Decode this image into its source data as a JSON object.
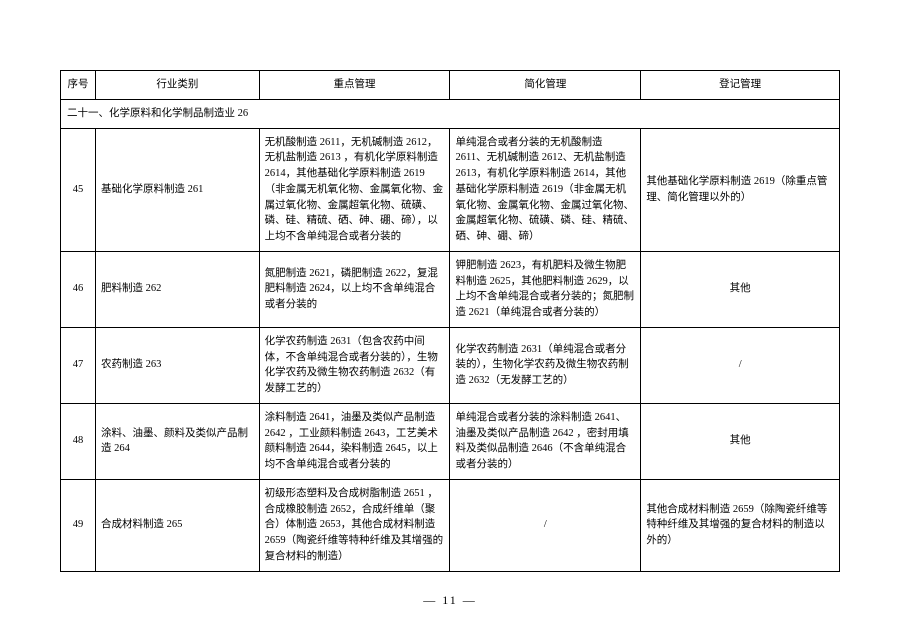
{
  "headers": {
    "seq": "序号",
    "industry": "行业类别",
    "key": "重点管理",
    "simple": "简化管理",
    "reg": "登记管理"
  },
  "section": "二十一、化学原料和化学制品制造业 26",
  "rows": [
    {
      "seq": "45",
      "industry": "基础化学原料制造 261",
      "key": "无机酸制造 2611，无机碱制造 2612，无机盐制造 2613 ，有机化学原料制造 2614，其他基础化学原料制造 2619（非金属无机氧化物、金属氧化物、金属过氧化物、金属超氧化物、硫磺、磷、硅、精硫、硒、砷、硼、碲），以上均不含单纯混合或者分装的",
      "simple": "单纯混合或者分装的无机酸制造 2611、无机碱制造 2612、无机盐制造 2613，有机化学原料制造 2614，其他基础化学原料制造 2619（非金属无机氧化物、金属氧化物、金属过氧化物、金属超氧化物、硫磺、磷、硅、精硫、硒、砷、硼、碲）",
      "reg": "其他基础化学原料制造 2619（除重点管理、简化管理以外的）"
    },
    {
      "seq": "46",
      "industry": "肥料制造 262",
      "key": "氮肥制造 2621，磷肥制造 2622，复混肥料制造 2624，以上均不含单纯混合或者分装的",
      "simple": "钾肥制造 2623，有机肥料及微生物肥料制造 2625，其他肥料制造 2629，以上均不含单纯混合或者分装的；氮肥制造 2621（单纯混合或者分装的）",
      "reg": "其他"
    },
    {
      "seq": "47",
      "industry": "农药制造 263",
      "key": "化学农药制造 2631（包含农药中间体，不含单纯混合或者分装的），生物化学农药及微生物农药制造 2632（有发酵工艺的）",
      "simple": "化学农药制造 2631（单纯混合或者分装的），生物化学农药及微生物农药制造 2632（无发酵工艺的）",
      "reg": "/"
    },
    {
      "seq": "48",
      "industry": "涂料、油墨、颜料及类似产品制造 264",
      "key": "涂料制造 2641，油墨及类似产品制造 2642 ，工业颜料制造 2643，工艺美术颜料制造 2644，染料制造 2645，以上均不含单纯混合或者分装的",
      "simple": "单纯混合或者分装的涂料制造 2641、油墨及类似产品制造 2642 ，密封用填料及类似品制造 2646（不含单纯混合或者分装的）",
      "reg": "其他"
    },
    {
      "seq": "49",
      "industry": "合成材料制造 265",
      "key": "初级形态塑料及合成树脂制造 2651 ，合成橡胶制造 2652，合成纤维单（聚合）体制造 2653，其他合成材料制造 2659（陶瓷纤维等特种纤维及其增强的复合材料的制造）",
      "simple": "/",
      "reg": "其他合成材料制造 2659（除陶瓷纤维等特种纤维及其增强的复合材料的制造以外的）"
    }
  ],
  "pageNumber": "— 11 —"
}
